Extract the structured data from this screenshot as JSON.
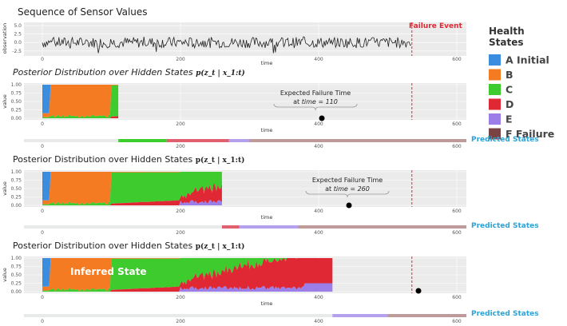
{
  "titles": {
    "sensor": "Sequence of Sensor Values",
    "posterior": "Posterior Distribution over Hidden States",
    "formula": "p(z_t | x_1:t)",
    "failure_event": "Failure Event",
    "predicted": "Predicted States",
    "inferred": "Inferred State"
  },
  "axes": {
    "time_label": "time",
    "obs_label": "observation",
    "value_label": "value",
    "x_ticks": [
      "0",
      "200",
      "400",
      "600"
    ],
    "y_ticks_sensor": [
      "5.0",
      "2.5",
      "0.0",
      "-2.5"
    ],
    "y_ticks_prob": [
      "1.00",
      "0.75",
      "0.50",
      "0.25",
      "0.00"
    ]
  },
  "legend": {
    "title": "Health States",
    "items": [
      {
        "label": "A Initial",
        "color": "#3b8de0"
      },
      {
        "label": "B",
        "color": "#f47b22"
      },
      {
        "label": "C",
        "color": "#3ecb2e"
      },
      {
        "label": "D",
        "color": "#e02835"
      },
      {
        "label": "E",
        "color": "#9b7ee8"
      },
      {
        "label": "F Failure",
        "color": "#7a4343"
      }
    ]
  },
  "annotations": [
    {
      "line1": "Expected Failure Time",
      "prefix": "at ",
      "var": "time",
      "eq": " = ",
      "value": "110"
    },
    {
      "line1": "Expected Failure Time",
      "prefix": "at ",
      "var": "time",
      "eq": " = ",
      "value": "260"
    }
  ],
  "colors": {
    "panel_bg": "#ebebeb",
    "accent_cyan": "#2aa4d8",
    "failure_red": "#e02835",
    "predicted_red": "#e06070",
    "predicted_purple": "#b4a0ec",
    "predicted_brown": "#bf9a9a"
  },
  "chart_data": {
    "type": "area",
    "failure_time": 535,
    "x_range": [
      0,
      600
    ],
    "sensor_ylim": [
      -3.5,
      5.5
    ],
    "panels": [
      {
        "observed_until": 110,
        "expected_failure_time": 110,
        "predicted_segments": [
          {
            "from": 0,
            "to": 110,
            "state": "none"
          },
          {
            "from": 110,
            "to": 180,
            "state": "C"
          },
          {
            "from": 180,
            "to": 270,
            "state": "D"
          },
          {
            "from": 270,
            "to": 300,
            "state": "E"
          },
          {
            "from": 300,
            "to": 600,
            "state": "F Failure"
          }
        ]
      },
      {
        "observed_until": 260,
        "expected_failure_time": 260,
        "predicted_segments": [
          {
            "from": 0,
            "to": 260,
            "state": "none"
          },
          {
            "from": 260,
            "to": 285,
            "state": "D"
          },
          {
            "from": 285,
            "to": 370,
            "state": "E"
          },
          {
            "from": 370,
            "to": 600,
            "state": "F Failure"
          }
        ]
      },
      {
        "observed_until": 420,
        "expected_failure_time": 545,
        "predicted_segments": [
          {
            "from": 0,
            "to": 420,
            "state": "none"
          },
          {
            "from": 420,
            "to": 500,
            "state": "E"
          },
          {
            "from": 500,
            "to": 600,
            "state": "F Failure"
          }
        ]
      }
    ]
  }
}
